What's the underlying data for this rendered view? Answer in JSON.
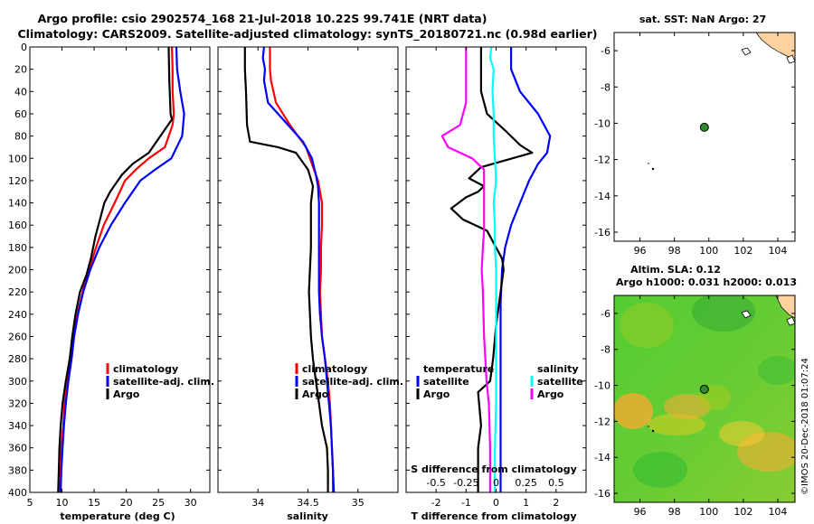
{
  "title": {
    "line1": "Argo profile: csio 2902574_168 21-Jul-2018 10.22S 99.741E (NRT data)",
    "line2": "Climatology: CARS2009. Satellite-adjusted climatology: synTS_20180721.nc (0.98d earlier)"
  },
  "colors": {
    "climatology": "#ff0000",
    "satellite": "#0000ff",
    "argo": "#000000",
    "satellite_salinity_diff": "#00ffff",
    "argo_salinity_diff": "#ff00ff",
    "land": "#ffd2a0",
    "sla_green": "#44cc33",
    "sla_yellow": "#bbdd22",
    "sla_orange": "#ffaa33",
    "float_marker": "#2e8b2e"
  },
  "panels": {
    "temperature": {
      "xlabel": "temperature (deg C)"
    },
    "salinity": {
      "xlabel": "salinity"
    },
    "difference": {
      "xlabel": "T difference from climatology",
      "top_axis_label": "S difference from climatology",
      "legend_temperature_title": "temperature",
      "legend_salinity_title": "salinity"
    },
    "sst_map": {
      "title": "sat. SST: NaN Argo: 27"
    },
    "sla_map": {
      "title1": "Altim. SLA: 0.12",
      "title2": "Argo h1000: 0.031 h2000: 0.013"
    }
  },
  "legend": {
    "climatology": "climatology",
    "satellite_adj": "satellite-adj. clim.",
    "argo": "Argo",
    "satellite": "satellite"
  },
  "watermark": "©IMOS 20-Dec-2018 01:07:24",
  "chart_data": [
    {
      "type": "line",
      "name": "temperature-profile",
      "xlim": [
        5,
        33
      ],
      "ylim": [
        400,
        0
      ],
      "xticks": [
        "5",
        "10",
        "15",
        "20",
        "25",
        "30"
      ],
      "yticks": [
        "0",
        "20",
        "40",
        "60",
        "80",
        "100",
        "120",
        "140",
        "160",
        "180",
        "200",
        "220",
        "240",
        "260",
        "280",
        "300",
        "320",
        "340",
        "360",
        "380",
        "400"
      ],
      "series": [
        {
          "name": "climatology",
          "color": "#ff0000",
          "points": [
            [
              27.1,
              0
            ],
            [
              27.2,
              20
            ],
            [
              27.2,
              40
            ],
            [
              27.4,
              60
            ],
            [
              27.2,
              70
            ],
            [
              26,
              90
            ],
            [
              23.5,
              100
            ],
            [
              21.5,
              110
            ],
            [
              19.8,
              120
            ],
            [
              18.2,
              140
            ],
            [
              16.5,
              160
            ],
            [
              15.3,
              180
            ],
            [
              14.2,
              200
            ],
            [
              13.2,
              220
            ],
            [
              12.4,
              240
            ],
            [
              11.8,
              260
            ],
            [
              11.4,
              280
            ],
            [
              10.9,
              300
            ],
            [
              10.4,
              320
            ],
            [
              10.2,
              340
            ],
            [
              9.9,
              360
            ],
            [
              9.8,
              380
            ],
            [
              9.7,
              400
            ]
          ]
        },
        {
          "name": "satellite-adj. clim.",
          "color": "#0000ff",
          "points": [
            [
              27.8,
              0
            ],
            [
              27.9,
              20
            ],
            [
              28.4,
              40
            ],
            [
              29.0,
              60
            ],
            [
              28.7,
              80
            ],
            [
              27,
              100
            ],
            [
              24.5,
              110
            ],
            [
              22.2,
              120
            ],
            [
              19.8,
              140
            ],
            [
              17.6,
              160
            ],
            [
              15.8,
              180
            ],
            [
              14.4,
              200
            ],
            [
              13.3,
              220
            ],
            [
              12.5,
              240
            ],
            [
              11.9,
              260
            ],
            [
              11.5,
              280
            ],
            [
              11.0,
              300
            ],
            [
              10.6,
              320
            ],
            [
              10.3,
              340
            ],
            [
              10.1,
              360
            ],
            [
              9.9,
              380
            ],
            [
              9.8,
              400
            ]
          ]
        },
        {
          "name": "Argo",
          "color": "#000000",
          "points": [
            [
              26.6,
              0
            ],
            [
              26.7,
              30
            ],
            [
              26.9,
              60
            ],
            [
              27.1,
              65
            ],
            [
              25.3,
              80
            ],
            [
              23.5,
              95
            ],
            [
              21,
              105
            ],
            [
              19.3,
              115
            ],
            [
              17.5,
              130
            ],
            [
              16.6,
              140
            ],
            [
              15.9,
              155
            ],
            [
              15.2,
              170
            ],
            [
              14.5,
              190
            ],
            [
              13.8,
              205
            ],
            [
              12.8,
              220
            ],
            [
              12.1,
              240
            ],
            [
              11.6,
              260
            ],
            [
              11.2,
              280
            ],
            [
              10.6,
              300
            ],
            [
              10.1,
              320
            ],
            [
              9.8,
              340
            ],
            [
              9.6,
              360
            ],
            [
              9.5,
              380
            ],
            [
              9.4,
              400
            ]
          ]
        }
      ]
    },
    {
      "type": "line",
      "name": "salinity-profile",
      "xlim": [
        33.6,
        35.4
      ],
      "ylim": [
        400,
        0
      ],
      "xticks": [
        "34",
        "34.5",
        "35"
      ],
      "series": [
        {
          "name": "climatology",
          "color": "#ff0000",
          "points": [
            [
              34.12,
              0
            ],
            [
              34.12,
              20
            ],
            [
              34.13,
              30
            ],
            [
              34.18,
              50
            ],
            [
              34.32,
              70
            ],
            [
              34.48,
              90
            ],
            [
              34.56,
              110
            ],
            [
              34.6,
              120
            ],
            [
              34.64,
              140
            ],
            [
              34.64,
              160
            ],
            [
              34.63,
              180
            ],
            [
              34.63,
              200
            ],
            [
              34.62,
              220
            ],
            [
              34.63,
              240
            ],
            [
              34.64,
              260
            ],
            [
              34.67,
              280
            ],
            [
              34.7,
              300
            ],
            [
              34.72,
              320
            ],
            [
              34.73,
              340
            ],
            [
              34.74,
              360
            ],
            [
              34.75,
              380
            ],
            [
              34.75,
              400
            ]
          ]
        },
        {
          "name": "satellite-adj. clim.",
          "color": "#0000ff",
          "points": [
            [
              34.06,
              0
            ],
            [
              34.05,
              10
            ],
            [
              34.07,
              20
            ],
            [
              34.06,
              30
            ],
            [
              34.1,
              50
            ],
            [
              34.25,
              65
            ],
            [
              34.45,
              85
            ],
            [
              34.54,
              100
            ],
            [
              34.58,
              115
            ],
            [
              34.6,
              125
            ],
            [
              34.61,
              140
            ],
            [
              34.61,
              160
            ],
            [
              34.61,
              180
            ],
            [
              34.61,
              200
            ],
            [
              34.61,
              220
            ],
            [
              34.62,
              240
            ],
            [
              34.64,
              260
            ],
            [
              34.67,
              280
            ],
            [
              34.69,
              300
            ],
            [
              34.71,
              320
            ],
            [
              34.73,
              340
            ],
            [
              34.74,
              360
            ],
            [
              34.75,
              380
            ],
            [
              34.76,
              400
            ]
          ]
        },
        {
          "name": "Argo",
          "color": "#000000",
          "points": [
            [
              33.87,
              0
            ],
            [
              33.87,
              20
            ],
            [
              33.88,
              40
            ],
            [
              33.89,
              70
            ],
            [
              33.92,
              85
            ],
            [
              34.2,
              90
            ],
            [
              34.38,
              95
            ],
            [
              34.5,
              110
            ],
            [
              34.55,
              125
            ],
            [
              34.53,
              140
            ],
            [
              34.53,
              160
            ],
            [
              34.53,
              180
            ],
            [
              34.52,
              200
            ],
            [
              34.51,
              220
            ],
            [
              34.52,
              240
            ],
            [
              34.53,
              260
            ],
            [
              34.55,
              280
            ],
            [
              34.58,
              300
            ],
            [
              34.61,
              320
            ],
            [
              34.64,
              340
            ],
            [
              34.69,
              360
            ],
            [
              34.7,
              380
            ],
            [
              34.7,
              400
            ]
          ]
        }
      ]
    },
    {
      "type": "line",
      "name": "difference-profile",
      "xlim": [
        -3,
        3
      ],
      "ylim": [
        400,
        0
      ],
      "xticks": [
        "-2",
        "-1",
        "0",
        "1",
        "2"
      ],
      "top_xlim": [
        -0.75,
        0.75
      ],
      "top_xticks": [
        "-0.5",
        "-0.25",
        "0",
        "0.25",
        "0.5"
      ],
      "series": [
        {
          "name": "temperature satellite",
          "axis": "T",
          "color": "#0000ff",
          "points": [
            [
              0.5,
              0
            ],
            [
              0.5,
              20
            ],
            [
              0.8,
              40
            ],
            [
              1.4,
              60
            ],
            [
              1.8,
              80
            ],
            [
              1.7,
              95
            ],
            [
              1.4,
              105
            ],
            [
              1.1,
              120
            ],
            [
              0.8,
              140
            ],
            [
              0.5,
              160
            ],
            [
              0.3,
              180
            ],
            [
              0.2,
              200
            ],
            [
              0.15,
              230
            ],
            [
              0.15,
              260
            ],
            [
              0.15,
              300
            ],
            [
              0.15,
              340
            ],
            [
              0.15,
              400
            ]
          ]
        },
        {
          "name": "temperature Argo",
          "axis": "T",
          "color": "#000000",
          "points": [
            [
              -0.5,
              0
            ],
            [
              -0.5,
              40
            ],
            [
              -0.3,
              60
            ],
            [
              0.3,
              75
            ],
            [
              0.8,
              88
            ],
            [
              1.2,
              95
            ],
            [
              -0.5,
              108
            ],
            [
              -0.9,
              118
            ],
            [
              -0.4,
              125
            ],
            [
              -0.6,
              130
            ],
            [
              -1.0,
              135
            ],
            [
              -1.5,
              145
            ],
            [
              -1.1,
              155
            ],
            [
              -0.3,
              165
            ],
            [
              0.2,
              190
            ],
            [
              0.25,
              200
            ],
            [
              0.15,
              220
            ],
            [
              0.0,
              250
            ],
            [
              -0.1,
              280
            ],
            [
              -0.2,
              300
            ],
            [
              -0.6,
              310
            ],
            [
              -0.5,
              340
            ],
            [
              -0.6,
              360
            ],
            [
              -0.6,
              400
            ]
          ]
        },
        {
          "name": "salinity satellite",
          "axis": "S",
          "color": "#00ffff",
          "points": [
            [
              -0.04,
              0
            ],
            [
              -0.05,
              10
            ],
            [
              -0.02,
              20
            ],
            [
              -0.03,
              40
            ],
            [
              -0.02,
              60
            ],
            [
              -0.02,
              80
            ],
            [
              -0.01,
              100
            ],
            [
              0.0,
              120
            ],
            [
              -0.02,
              140
            ],
            [
              -0.01,
              160
            ],
            [
              -0.01,
              180
            ],
            [
              0.0,
              200
            ],
            [
              0.0,
              240
            ],
            [
              0.0,
              280
            ],
            [
              0.0,
              320
            ],
            [
              -0.01,
              360
            ],
            [
              -0.01,
              400
            ]
          ]
        },
        {
          "name": "salinity Argo",
          "axis": "S",
          "color": "#ff00ff",
          "points": [
            [
              -0.25,
              0
            ],
            [
              -0.25,
              20
            ],
            [
              -0.25,
              50
            ],
            [
              -0.3,
              70
            ],
            [
              -0.45,
              80
            ],
            [
              -0.4,
              90
            ],
            [
              -0.2,
              100
            ],
            [
              -0.1,
              110
            ],
            [
              -0.1,
              140
            ],
            [
              -0.1,
              165
            ],
            [
              -0.11,
              180
            ],
            [
              -0.12,
              200
            ],
            [
              -0.11,
              220
            ],
            [
              -0.1,
              260
            ],
            [
              -0.09,
              280
            ],
            [
              -0.08,
              300
            ],
            [
              -0.06,
              320
            ],
            [
              -0.05,
              360
            ],
            [
              -0.05,
              400
            ]
          ]
        }
      ]
    },
    {
      "type": "scatter",
      "name": "sst-map",
      "xlim": [
        94.5,
        105
      ],
      "ylim": [
        -16.5,
        -5
      ],
      "xticks": [
        "96",
        "98",
        "100",
        "102",
        "104"
      ],
      "yticks": [
        "-6",
        "-8",
        "-10",
        "-12",
        "-14",
        "-16"
      ],
      "argo_position": [
        99.741,
        -10.22
      ]
    },
    {
      "type": "heatmap",
      "name": "sla-map",
      "xlim": [
        94.5,
        105
      ],
      "ylim": [
        -16.5,
        -5
      ],
      "xticks": [
        "96",
        "98",
        "100",
        "102",
        "104"
      ],
      "yticks": [
        "-6",
        "-8",
        "-10",
        "-12",
        "-14",
        "-16"
      ],
      "argo_position": [
        99.741,
        -10.22
      ]
    }
  ]
}
